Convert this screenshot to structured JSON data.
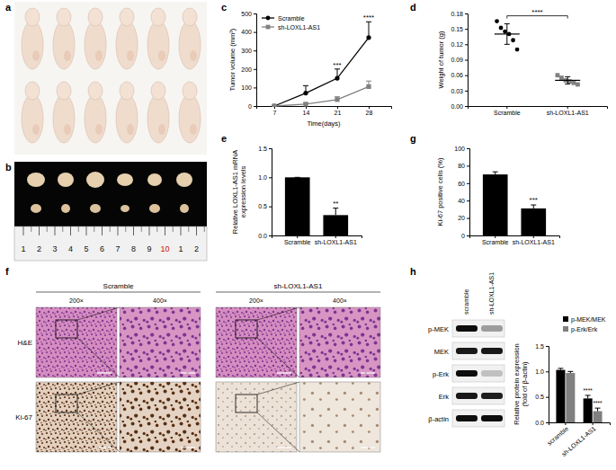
{
  "figure": {
    "panel_labels": [
      "a",
      "b",
      "c",
      "d",
      "e",
      "f",
      "g",
      "h"
    ],
    "ruler_labels": [
      "1",
      "2",
      "3",
      "4",
      "5",
      "6",
      "7",
      "8",
      "9",
      "10",
      "1",
      "2"
    ],
    "histology": {
      "columns": [
        "Scramble",
        "sh-LOXL1-AS1"
      ],
      "magnifications": [
        "200×",
        "400×",
        "200×",
        "400×"
      ],
      "rows": [
        "H&E",
        "Ki-67"
      ]
    },
    "blot": {
      "columns": [
        "scramble",
        "sh-LOXL1-AS1"
      ],
      "rows": [
        "p-MEK",
        "MEK",
        "p-Erk",
        "Erk",
        "β-actin"
      ]
    }
  },
  "chart_data": [
    {
      "type": "line",
      "x_label": "Time(days)",
      "y_label": "Tumor volume (mm³)",
      "x": [
        7,
        14,
        21,
        28
      ],
      "xlim": [
        3,
        33
      ],
      "xticks": [
        7,
        14,
        21,
        28
      ],
      "ylim": [
        0,
        500
      ],
      "yticks": [
        0,
        100,
        200,
        300,
        400,
        500
      ],
      "legend": "upper left",
      "series": [
        {
          "name": "Scramble",
          "color": "#000000",
          "marker": "circle",
          "values": [
            0,
            70,
            150,
            370
          ],
          "errors": [
            0,
            40,
            50,
            85
          ]
        },
        {
          "name": "sh-LOXL1-AS1",
          "color": "#808080",
          "marker": "square",
          "values": [
            0,
            10,
            35,
            105
          ],
          "errors": [
            0,
            8,
            15,
            30
          ]
        }
      ],
      "annotations": [
        {
          "x": 21,
          "text": "***"
        },
        {
          "x": 28,
          "text": "****"
        }
      ]
    },
    {
      "type": "dot",
      "y_label": "Weight of tumor (g)",
      "categories": [
        "Scramble",
        "sh-LOXL1-AS1"
      ],
      "points": [
        [
          0.165,
          0.152,
          0.145,
          0.14,
          0.128,
          0.11
        ],
        [
          0.06,
          0.055,
          0.05,
          0.048,
          0.045,
          0.042
        ]
      ],
      "values": [
        0.14,
        0.05
      ],
      "errors": [
        0.02,
        0.007
      ],
      "colors": [
        "#000000",
        "#808080"
      ],
      "ylim": [
        0,
        0.18
      ],
      "yticks": [
        {
          "value": 0,
          "label": "0.00"
        },
        0.03,
        0.06,
        0.09,
        0.12,
        0.15,
        0.18
      ],
      "annotations": [
        {
          "text": "****"
        }
      ]
    },
    {
      "type": "bar",
      "y_label": [
        "Relative LOXL1-AS1 mRNA",
        "expression levels"
      ],
      "categories": [
        "Scramble",
        "sh-LOXL1-AS1"
      ],
      "values": [
        1.0,
        0.35
      ],
      "errors": [
        0,
        0.12
      ],
      "color": "#000000",
      "ylim": [
        0,
        1.5
      ],
      "yticks": [
        {
          "value": 0,
          "label": "0.0"
        },
        0.5,
        {
          "value": 1,
          "label": "1.0"
        },
        1.5
      ],
      "annotations": [
        {
          "category": 1,
          "text": "**"
        }
      ]
    },
    {
      "type": "bar",
      "y_label": "Ki-67 positive cells (%)",
      "categories": [
        "Scramble",
        "sh-LOXL1-AS1"
      ],
      "values": [
        70,
        31
      ],
      "errors": [
        3,
        4
      ],
      "color": "#000000",
      "ylim": [
        0,
        100
      ],
      "yticks": [
        0,
        20,
        40,
        60,
        80,
        100
      ],
      "annotations": [
        {
          "category": 1,
          "text": "***"
        }
      ]
    },
    {
      "type": "bar",
      "y_label": [
        "Relative protein expression",
        "(fold of β-actin)"
      ],
      "categories": [
        "scramble",
        "sh-LOXL1-AS1"
      ],
      "series": [
        {
          "name": "p-MEK/MEK",
          "color": "#000000",
          "values": [
            1.03,
            0.47
          ],
          "errors": [
            0.03,
            0.06
          ]
        },
        {
          "name": "p-Erk/Erk",
          "color": "#808080",
          "values": [
            0.97,
            0.22
          ],
          "errors": [
            0.03,
            0.06
          ]
        }
      ],
      "ylim": [
        0,
        1.5
      ],
      "yticks": [
        {
          "value": 0,
          "label": "0.0"
        },
        0.5,
        {
          "value": 1,
          "label": "1.0"
        },
        1.5
      ],
      "legend": "upper right",
      "annotations": [
        {
          "category": 1,
          "series": 0,
          "text": "****"
        },
        {
          "category": 1,
          "series": 1,
          "text": "****"
        }
      ]
    }
  ]
}
